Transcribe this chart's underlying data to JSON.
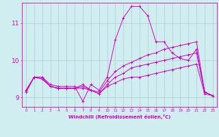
{
  "xlabel": "Windchill (Refroidissement éolien,°C)",
  "background_color": "#d0eef0",
  "grid_color": "#b0c8d8",
  "line_color": "#cc00cc",
  "x_ticks": [
    0,
    1,
    2,
    3,
    4,
    5,
    6,
    7,
    8,
    9,
    10,
    11,
    12,
    13,
    14,
    15,
    16,
    17,
    18,
    19,
    20,
    21,
    22,
    23
  ],
  "ylim": [
    8.75,
    11.55
  ],
  "yticks": [
    9,
    10,
    11
  ],
  "xlim": [
    -0.5,
    23.5
  ],
  "series": [
    {
      "x": [
        0,
        1,
        2,
        3,
        4,
        5,
        6,
        7,
        8,
        9,
        10,
        11,
        12,
        13,
        14,
        15,
        16,
        17,
        18,
        19,
        20,
        21,
        22,
        23
      ],
      "y": [
        9.2,
        9.55,
        9.55,
        9.35,
        9.3,
        9.3,
        9.3,
        8.9,
        9.35,
        9.2,
        9.55,
        10.55,
        11.15,
        11.45,
        11.45,
        11.2,
        10.5,
        10.5,
        10.2,
        10.05,
        10.0,
        10.3,
        9.15,
        9.05
      ]
    },
    {
      "x": [
        0,
        1,
        2,
        3,
        4,
        5,
        6,
        7,
        8,
        9,
        10,
        11,
        12,
        13,
        14,
        15,
        16,
        17,
        18,
        19,
        20,
        21,
        22,
        23
      ],
      "y": [
        9.15,
        9.55,
        9.55,
        9.3,
        9.25,
        9.25,
        9.25,
        9.35,
        9.2,
        9.15,
        9.45,
        9.7,
        9.85,
        9.95,
        10.05,
        10.15,
        10.2,
        10.3,
        10.35,
        10.4,
        10.45,
        10.5,
        9.15,
        9.05
      ]
    },
    {
      "x": [
        0,
        1,
        2,
        3,
        4,
        5,
        6,
        7,
        8,
        9,
        10,
        11,
        12,
        13,
        14,
        15,
        16,
        17,
        18,
        19,
        20,
        21,
        22,
        23
      ],
      "y": [
        9.15,
        9.55,
        9.5,
        9.3,
        9.25,
        9.25,
        9.25,
        9.3,
        9.2,
        9.1,
        9.35,
        9.55,
        9.65,
        9.8,
        9.85,
        9.9,
        9.95,
        10.0,
        10.05,
        10.1,
        10.15,
        10.2,
        9.15,
        9.05
      ]
    },
    {
      "x": [
        0,
        1,
        2,
        3,
        4,
        5,
        6,
        7,
        8,
        9,
        10,
        11,
        12,
        13,
        14,
        15,
        16,
        17,
        18,
        19,
        20,
        21,
        22,
        23
      ],
      "y": [
        9.15,
        9.55,
        9.5,
        9.3,
        9.25,
        9.25,
        9.25,
        9.25,
        9.2,
        9.1,
        9.3,
        9.4,
        9.5,
        9.55,
        9.55,
        9.6,
        9.65,
        9.7,
        9.75,
        9.8,
        9.85,
        9.9,
        9.1,
        9.05
      ]
    }
  ]
}
